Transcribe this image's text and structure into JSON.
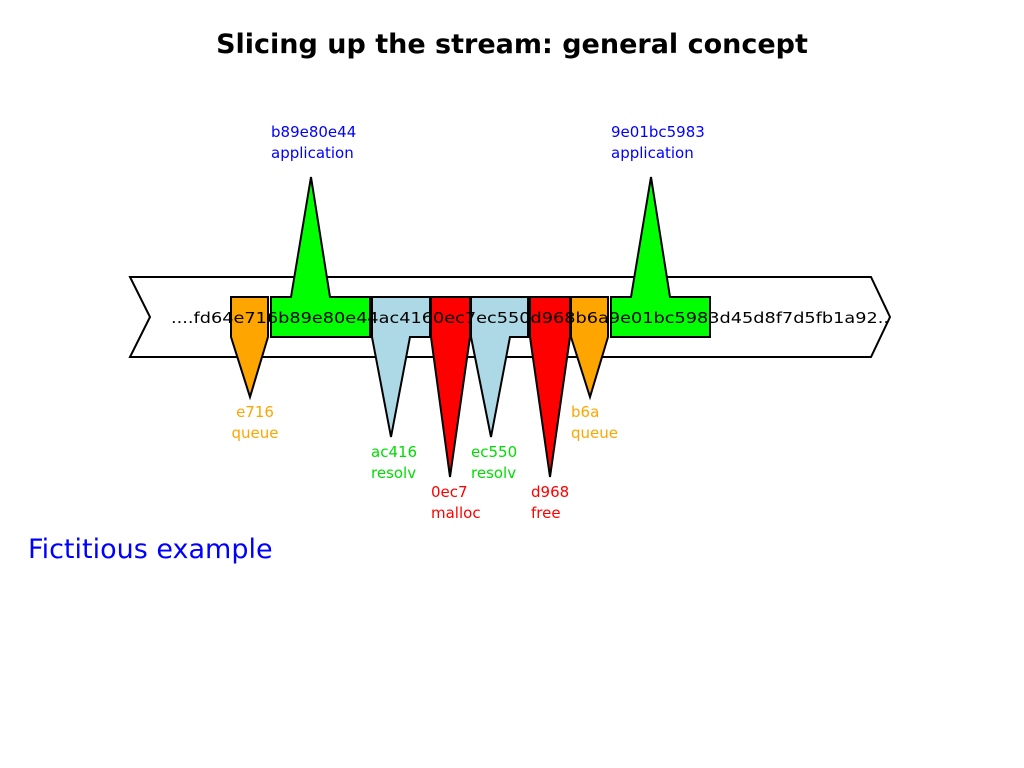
{
  "title": "Slicing up the stream: general concept",
  "note": "Fictitious example",
  "stream_text": "....fd64e716b89e80e44ac4160ec7ec550d968b6a9e01bc5983d45d8f7d5fb1a92..",
  "colors": {
    "application": "#00ff00",
    "queue": "#ffa500",
    "resolv": "#add8e6",
    "malloc": "#ff0000",
    "free": "#ff0000",
    "application_label": "#0000ff",
    "queue_label": "#ffa500",
    "resolv_label": "#00dd00",
    "malloc_label": "#ff0000",
    "free_label": "#ff0000"
  },
  "slices": [
    {
      "id": "e716",
      "type": "queue"
    },
    {
      "id": "b89e80e44",
      "type": "application"
    },
    {
      "id": "ac416",
      "type": "resolv"
    },
    {
      "id": "0ec7",
      "type": "malloc"
    },
    {
      "id": "ec550",
      "type": "resolv"
    },
    {
      "id": "d968",
      "type": "free"
    },
    {
      "id": "b6a",
      "type": "queue"
    },
    {
      "id": "9e01bc5983",
      "type": "application"
    }
  ]
}
